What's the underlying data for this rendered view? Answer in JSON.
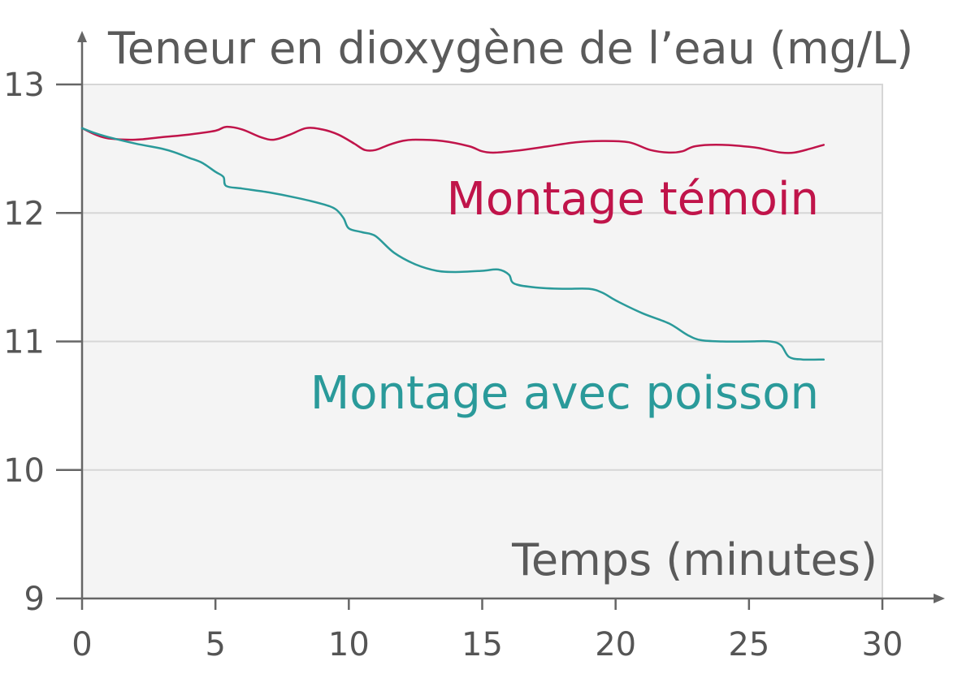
{
  "chart_data": {
    "type": "line",
    "ylabel": "Teneur en dioxygène de l’eau (mg/L)",
    "xlabel": "Temps (minutes)",
    "xlim": [
      0,
      30
    ],
    "ylim": [
      9,
      13
    ],
    "xticks": [
      0,
      5,
      10,
      15,
      20,
      25,
      30
    ],
    "yticks": [
      9,
      10,
      11,
      12,
      13
    ],
    "grid": "horizontal",
    "colors": {
      "plot_background": "#f4f4f4",
      "axis": "#666666",
      "grid": "#d6d6d6"
    },
    "series": [
      {
        "name": "Montage témoin",
        "color": "#c0144a",
        "points": [
          [
            0,
            12.66
          ],
          [
            0.5,
            12.61
          ],
          [
            1,
            12.58
          ],
          [
            2,
            12.57
          ],
          [
            3,
            12.59
          ],
          [
            4,
            12.61
          ],
          [
            5,
            12.64
          ],
          [
            5.4,
            12.67
          ],
          [
            6,
            12.65
          ],
          [
            6.7,
            12.59
          ],
          [
            7.2,
            12.57
          ],
          [
            7.8,
            12.61
          ],
          [
            8.4,
            12.66
          ],
          [
            9,
            12.65
          ],
          [
            9.6,
            12.61
          ],
          [
            10.2,
            12.54
          ],
          [
            10.6,
            12.49
          ],
          [
            11,
            12.49
          ],
          [
            11.5,
            12.53
          ],
          [
            12,
            12.56
          ],
          [
            12.5,
            12.57
          ],
          [
            13.5,
            12.56
          ],
          [
            14.5,
            12.52
          ],
          [
            15,
            12.48
          ],
          [
            15.5,
            12.47
          ],
          [
            16.5,
            12.49
          ],
          [
            17.5,
            12.52
          ],
          [
            18.5,
            12.55
          ],
          [
            19.5,
            12.56
          ],
          [
            20.5,
            12.55
          ],
          [
            21.3,
            12.49
          ],
          [
            22,
            12.47
          ],
          [
            22.5,
            12.48
          ],
          [
            23,
            12.52
          ],
          [
            24,
            12.53
          ],
          [
            25.2,
            12.51
          ],
          [
            25.7,
            12.49
          ],
          [
            26.2,
            12.47
          ],
          [
            26.7,
            12.47
          ],
          [
            27.3,
            12.5
          ],
          [
            27.8,
            12.53
          ]
        ]
      },
      {
        "name": "Montage avec poisson",
        "color": "#2a9a9a",
        "points": [
          [
            0,
            12.66
          ],
          [
            0.5,
            12.62
          ],
          [
            1,
            12.59
          ],
          [
            2,
            12.54
          ],
          [
            3,
            12.5
          ],
          [
            3.5,
            12.47
          ],
          [
            4,
            12.43
          ],
          [
            4.5,
            12.39
          ],
          [
            5,
            12.32
          ],
          [
            5.3,
            12.28
          ],
          [
            5.4,
            12.21
          ],
          [
            6,
            12.19
          ],
          [
            7,
            12.16
          ],
          [
            8,
            12.12
          ],
          [
            9,
            12.07
          ],
          [
            9.5,
            12.03
          ],
          [
            9.8,
            11.96
          ],
          [
            10,
            11.88
          ],
          [
            10.5,
            11.85
          ],
          [
            11,
            11.82
          ],
          [
            11.7,
            11.69
          ],
          [
            12.5,
            11.6
          ],
          [
            13.3,
            11.55
          ],
          [
            14,
            11.54
          ],
          [
            15,
            11.55
          ],
          [
            15.6,
            11.56
          ],
          [
            16,
            11.52
          ],
          [
            16.2,
            11.45
          ],
          [
            17,
            11.42
          ],
          [
            18,
            11.41
          ],
          [
            19,
            11.41
          ],
          [
            19.5,
            11.38
          ],
          [
            20,
            11.32
          ],
          [
            21,
            11.22
          ],
          [
            22,
            11.14
          ],
          [
            22.7,
            11.05
          ],
          [
            23.2,
            11.01
          ],
          [
            24,
            11.0
          ],
          [
            25,
            11.0
          ],
          [
            25.8,
            11.0
          ],
          [
            26.2,
            10.97
          ],
          [
            26.5,
            10.88
          ],
          [
            27,
            10.86
          ],
          [
            27.8,
            10.86
          ]
        ]
      }
    ]
  }
}
